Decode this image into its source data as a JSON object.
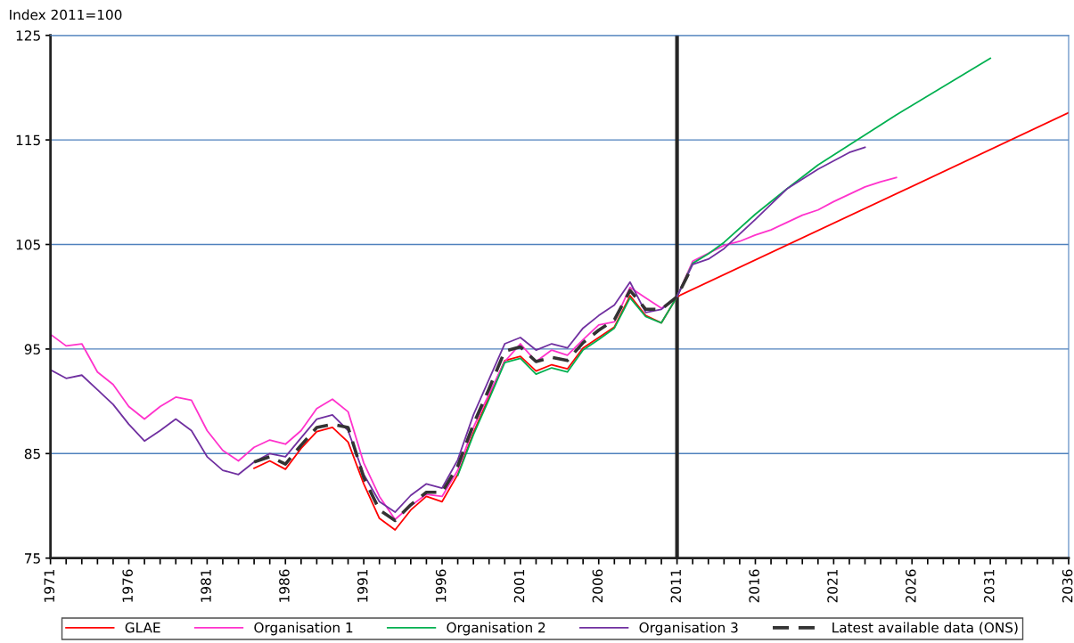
{
  "chart_data": {
    "type": "line",
    "ylabel": "Index 2011=100",
    "xlim": [
      1971,
      2036
    ],
    "ylim": [
      75,
      125
    ],
    "yticks": [
      75,
      85,
      95,
      105,
      115,
      125
    ],
    "xticks": [
      1971,
      {
        "value": 1972,
        "label": null
      },
      {
        "value": 1973,
        "label": null
      },
      {
        "value": 1974,
        "label": null
      },
      {
        "value": 1975,
        "label": null
      },
      1976,
      {
        "value": 1977,
        "label": null
      },
      {
        "value": 1978,
        "label": null
      },
      {
        "value": 1979,
        "label": null
      },
      {
        "value": 1980,
        "label": null
      },
      1981,
      {
        "value": 1982,
        "label": null
      },
      {
        "value": 1983,
        "label": null
      },
      {
        "value": 1984,
        "label": null
      },
      {
        "value": 1985,
        "label": null
      },
      1986,
      {
        "value": 1987,
        "label": null
      },
      {
        "value": 1988,
        "label": null
      },
      {
        "value": 1989,
        "label": null
      },
      {
        "value": 1990,
        "label": null
      },
      1991,
      {
        "value": 1992,
        "label": null
      },
      {
        "value": 1993,
        "label": null
      },
      {
        "value": 1994,
        "label": null
      },
      {
        "value": 1995,
        "label": null
      },
      1996,
      {
        "value": 1997,
        "label": null
      },
      {
        "value": 1998,
        "label": null
      },
      {
        "value": 1999,
        "label": null
      },
      {
        "value": 2000,
        "label": null
      },
      2001,
      {
        "value": 2002,
        "label": null
      },
      {
        "value": 2003,
        "label": null
      },
      {
        "value": 2004,
        "label": null
      },
      {
        "value": 2005,
        "label": null
      },
      2006,
      {
        "value": 2007,
        "label": null
      },
      {
        "value": 2008,
        "label": null
      },
      {
        "value": 2009,
        "label": null
      },
      {
        "value": 2010,
        "label": null
      },
      2011,
      {
        "value": 2012,
        "label": null
      },
      {
        "value": 2013,
        "label": null
      },
      {
        "value": 2014,
        "label": null
      },
      {
        "value": 2015,
        "label": null
      },
      2016,
      {
        "value": 2017,
        "label": null
      },
      {
        "value": 2018,
        "label": null
      },
      {
        "value": 2019,
        "label": null
      },
      {
        "value": 2020,
        "label": null
      },
      2021,
      {
        "value": 2022,
        "label": null
      },
      {
        "value": 2023,
        "label": null
      },
      {
        "value": 2024,
        "label": null
      },
      {
        "value": 2025,
        "label": null
      },
      2026,
      {
        "value": 2027,
        "label": null
      },
      {
        "value": 2028,
        "label": null
      },
      {
        "value": 2029,
        "label": null
      },
      {
        "value": 2030,
        "label": null
      },
      2031,
      {
        "value": 2032,
        "label": null
      },
      {
        "value": 2033,
        "label": null
      },
      {
        "value": 2034,
        "label": null
      },
      {
        "value": 2035,
        "label": null
      },
      2036
    ],
    "grid": "y",
    "legend": "bottom",
    "marker": "none",
    "ref_lines": [
      {
        "axis": "x",
        "value": 2011,
        "color": "#262626",
        "line_style": "solid"
      }
    ],
    "series": [
      {
        "name": "GLAE",
        "color": "#ff0000",
        "line_style": "solid",
        "x": [
          1984,
          1985,
          1986,
          1987,
          1988,
          1989,
          1990,
          1991,
          1992,
          1993,
          1994,
          1995,
          1996,
          1997,
          1998,
          1999,
          2000,
          2001,
          2002,
          2003,
          2004,
          2005,
          2006,
          2007,
          2008,
          2009,
          2010,
          2011,
          2036
        ],
        "values": [
          83.6,
          84.3,
          83.5,
          85.5,
          87.1,
          87.5,
          86.1,
          82.1,
          78.8,
          77.7,
          79.6,
          80.9,
          80.4,
          83.0,
          87.0,
          90.4,
          93.9,
          94.3,
          92.9,
          93.5,
          93.1,
          95.1,
          96.1,
          97.1,
          100.1,
          98.2,
          97.5,
          100.0,
          117.6
        ]
      },
      {
        "name": "Organisation 1",
        "color": "#ff33cc",
        "line_style": "solid",
        "x": [
          1971,
          1972,
          1973,
          1974,
          1975,
          1976,
          1977,
          1978,
          1979,
          1980,
          1981,
          1982,
          1983,
          1984,
          1985,
          1986,
          1987,
          1988,
          1989,
          1990,
          1991,
          1992,
          1993,
          1994,
          1995,
          1996,
          1997,
          1998,
          1999,
          2000,
          2001,
          2002,
          2003,
          2004,
          2005,
          2006,
          2007,
          2008,
          2009,
          2010,
          2011,
          2012,
          2014,
          2015,
          2016,
          2017,
          2018,
          2019,
          2020,
          2021,
          2022,
          2023,
          2024,
          2025
        ],
        "values": [
          96.4,
          95.3,
          95.5,
          92.8,
          91.6,
          89.5,
          88.3,
          89.5,
          90.4,
          90.1,
          87.2,
          85.3,
          84.3,
          85.6,
          86.3,
          85.9,
          87.2,
          89.3,
          90.2,
          89.0,
          84.1,
          80.9,
          78.7,
          80.0,
          81.1,
          80.9,
          83.4,
          87.5,
          90.7,
          93.8,
          95.5,
          93.8,
          94.9,
          94.4,
          95.9,
          97.3,
          97.6,
          100.9,
          99.9,
          98.9,
          100.0,
          103.4,
          104.9,
          105.3,
          105.9,
          106.4,
          107.1,
          107.8,
          108.3,
          109.1,
          109.8,
          110.5,
          111.0,
          111.4
        ]
      },
      {
        "name": "Organisation 2",
        "color": "#00b050",
        "line_style": "solid",
        "x": [
          1997,
          1998,
          1999,
          2000,
          2001,
          2002,
          2003,
          2004,
          2005,
          2006,
          2007,
          2008,
          2009,
          2010,
          2011,
          2012,
          2013,
          2014,
          2016,
          2018,
          2020,
          2025,
          2031
        ],
        "values": [
          82.9,
          86.8,
          90.2,
          93.7,
          94.1,
          92.6,
          93.2,
          92.8,
          94.9,
          95.9,
          97.0,
          99.9,
          98.1,
          97.5,
          100.0,
          103.2,
          104.1,
          105.2,
          107.9,
          110.3,
          112.6,
          117.4,
          122.8
        ]
      },
      {
        "name": "Organisation 3",
        "color": "#7030a0",
        "line_style": "solid",
        "x": [
          1971,
          1972,
          1973,
          1974,
          1975,
          1976,
          1977,
          1978,
          1979,
          1980,
          1981,
          1982,
          1983,
          1984,
          1985,
          1986,
          1987,
          1988,
          1989,
          1990,
          1991,
          1992,
          1993,
          1994,
          1995,
          1996,
          1997,
          1998,
          1999,
          2000,
          2001,
          2002,
          2003,
          2004,
          2005,
          2006,
          2007,
          2008,
          2009,
          2010,
          2011,
          2012,
          2013,
          2014,
          2016,
          2018,
          2020,
          2022,
          2023
        ],
        "values": [
          93.0,
          92.2,
          92.5,
          91.1,
          89.7,
          87.8,
          86.2,
          87.2,
          88.3,
          87.2,
          84.7,
          83.4,
          83.0,
          84.2,
          85.0,
          84.7,
          86.5,
          88.3,
          88.7,
          87.2,
          83.0,
          80.4,
          79.4,
          81.0,
          82.1,
          81.7,
          84.4,
          88.7,
          92.1,
          95.5,
          96.1,
          94.9,
          95.5,
          95.1,
          97.0,
          98.2,
          99.2,
          101.4,
          98.5,
          98.8,
          100.0,
          103.1,
          103.6,
          104.6,
          107.4,
          110.3,
          112.2,
          113.8,
          114.3
        ]
      },
      {
        "name": "Latest available data (ONS)",
        "color": "#333333",
        "line_style": "dashed",
        "x": [
          1984,
          1985,
          1986,
          1987,
          1988,
          1989,
          1990,
          1991,
          1992,
          1993,
          1994,
          1995,
          1996,
          1997,
          1998,
          1999,
          2000,
          2001,
          2002,
          2003,
          2004,
          2005,
          2006,
          2007,
          2008,
          2009,
          2010,
          2011,
          2012
        ],
        "values": [
          84.2,
          84.7,
          84.0,
          85.8,
          87.5,
          87.8,
          87.5,
          82.7,
          79.6,
          78.6,
          80.1,
          81.3,
          81.3,
          83.8,
          87.8,
          91.2,
          94.8,
          95.2,
          93.8,
          94.2,
          93.9,
          95.6,
          96.8,
          97.8,
          100.6,
          98.8,
          98.8,
          100.0,
          103.0
        ]
      }
    ]
  }
}
